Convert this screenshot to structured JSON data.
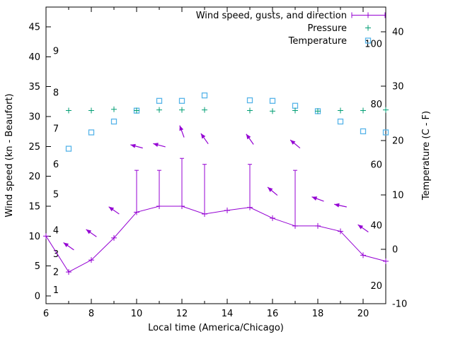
{
  "colors": {
    "wind": "#9400D3",
    "pressure": "#009E73",
    "temperature": "#56B4E9",
    "axis": "#000000",
    "background": "#FFFFFF"
  },
  "chart_data": {
    "type": "line",
    "title": "",
    "xlabel": "Local time (America/Chicago)",
    "ylabel_left": "Wind speed (kn - Beaufort)",
    "ylabel_right": "Temperature (C - F)",
    "xlim": [
      6,
      21
    ],
    "x_major_ticks": [
      6,
      8,
      10,
      12,
      14,
      16,
      18,
      20
    ],
    "x_minor_ticks": [
      7,
      9,
      11,
      13,
      15,
      17,
      19
    ],
    "ylim_left": [
      -1.3,
      48.3
    ],
    "y_left_ticks": [
      0,
      5,
      10,
      15,
      20,
      25,
      30,
      35,
      40,
      45
    ],
    "ylim_right": [
      -10,
      44.55
    ],
    "y_right_ticks": [
      -10,
      0,
      10,
      20,
      30,
      40
    ],
    "grid": false,
    "legend_position": "top-right-inside",
    "beaufort_scale_labels": [
      {
        "label": "1",
        "kn": 1
      },
      {
        "label": "2",
        "kn": 4
      },
      {
        "label": "3",
        "kn": 7
      },
      {
        "label": "4",
        "kn": 11
      },
      {
        "label": "5",
        "kn": 17
      },
      {
        "label": "6",
        "kn": 22
      },
      {
        "label": "7",
        "kn": 28
      },
      {
        "label": "8",
        "kn": 34
      },
      {
        "label": "9",
        "kn": 41
      }
    ],
    "fahrenheit_scale_labels": [
      {
        "label": "100",
        "c": 37.78
      },
      {
        "label": "80",
        "c": 26.67
      },
      {
        "label": "60",
        "c": 15.56
      },
      {
        "label": "40",
        "c": 4.44
      },
      {
        "label": "20",
        "c": -6.67
      }
    ],
    "legend": [
      {
        "label": "Wind speed, gusts, and direction",
        "series": "wind",
        "sample": "errorbar-line"
      },
      {
        "label": "Pressure",
        "series": "pressure",
        "sample": "plus"
      },
      {
        "label": "Temperature",
        "series": "temperature",
        "sample": "square"
      }
    ],
    "series": {
      "wind": {
        "name": "Wind speed, gusts, and direction",
        "axis": "left",
        "unit": "kn",
        "points": [
          [
            6,
            10
          ],
          [
            7,
            4
          ],
          [
            8,
            6
          ],
          [
            9,
            9.7
          ],
          [
            10,
            14
          ],
          [
            11,
            15
          ],
          [
            12,
            15
          ],
          [
            13,
            13.7
          ],
          [
            14,
            14.3
          ],
          [
            15,
            14.8
          ],
          [
            16,
            13
          ],
          [
            17,
            11.7
          ],
          [
            18,
            11.7
          ],
          [
            19,
            10.8
          ],
          [
            20,
            6.8
          ],
          [
            21,
            5.8
          ]
        ],
        "gusts": [
          [
            10,
            14,
            21
          ],
          [
            11,
            15,
            21
          ],
          [
            12,
            15,
            23
          ],
          [
            13,
            13.7,
            22
          ],
          [
            15,
            14.8,
            22
          ],
          [
            17,
            11.7,
            21
          ]
        ]
      },
      "wind_direction_arrows": [
        [
          7,
          8.3,
          145
        ],
        [
          8,
          10.5,
          145
        ],
        [
          9,
          14.3,
          145
        ],
        [
          10,
          25,
          165
        ],
        [
          11,
          25.2,
          165
        ],
        [
          12,
          27.5,
          110
        ],
        [
          13,
          26.3,
          125
        ],
        [
          15,
          26.2,
          125
        ],
        [
          16,
          17.5,
          140
        ],
        [
          17,
          25.4,
          140
        ],
        [
          18,
          16.2,
          160
        ],
        [
          19,
          15.1,
          168
        ],
        [
          20,
          11.3,
          145
        ]
      ],
      "pressure": {
        "name": "Pressure",
        "axis": "left",
        "points": [
          [
            7,
            31
          ],
          [
            8,
            31
          ],
          [
            9,
            31.2
          ],
          [
            10,
            31
          ],
          [
            11,
            31.1
          ],
          [
            12,
            31.1
          ],
          [
            13,
            31.1
          ],
          [
            15,
            31
          ],
          [
            16,
            30.9
          ],
          [
            17,
            31
          ],
          [
            18,
            30.9
          ],
          [
            19,
            31
          ],
          [
            20,
            31
          ],
          [
            21,
            31.1
          ]
        ]
      },
      "temperature": {
        "name": "Temperature",
        "axis": "right",
        "unit": "C",
        "points": [
          [
            7,
            18.5
          ],
          [
            8,
            21.5
          ],
          [
            9,
            23.5
          ],
          [
            10,
            25.5
          ],
          [
            11,
            27.3
          ],
          [
            12,
            27.3
          ],
          [
            13,
            28.3
          ],
          [
            15,
            27.4
          ],
          [
            16,
            27.3
          ],
          [
            17,
            26.4
          ],
          [
            18,
            25.4
          ],
          [
            19,
            23.5
          ],
          [
            20,
            21.7
          ],
          [
            21,
            21.5
          ]
        ]
      }
    }
  }
}
